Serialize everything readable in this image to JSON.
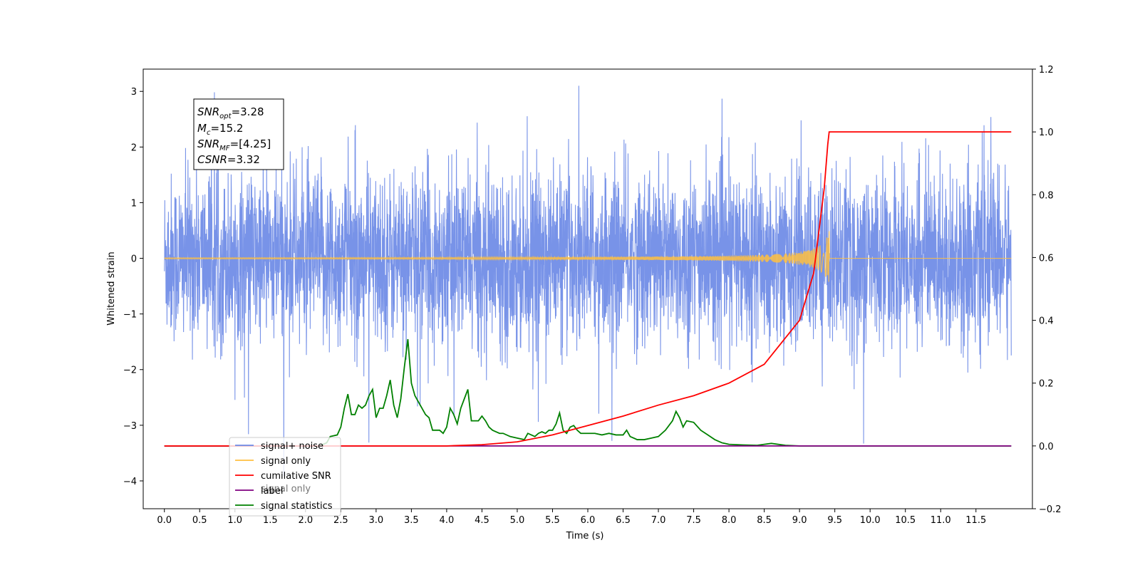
{
  "chart_data": {
    "type": "line",
    "xlabel": "Time (s)",
    "ylabel": "Whitened strain",
    "xlim": [
      -0.3,
      12.3
    ],
    "ylim": [
      -4.5,
      3.4
    ],
    "y2lim": [
      -0.2,
      1.2
    ],
    "grid": false,
    "legend_position": "bottom-left",
    "x_ticks": [
      "0.0",
      "0.5",
      "1.0",
      "1.5",
      "2.0",
      "2.5",
      "3.0",
      "3.5",
      "4.0",
      "4.5",
      "5.0",
      "5.5",
      "6.0",
      "6.5",
      "7.0",
      "7.5",
      "8.0",
      "8.5",
      "9.0",
      "9.5",
      "10.0",
      "10.5",
      "11.0",
      "11.5"
    ],
    "y_ticks": [
      "3",
      "2",
      "1",
      "0",
      "−1",
      "−2",
      "−3",
      "−4"
    ],
    "y2_ticks": [
      "1.2",
      "1.0",
      "0.8",
      "0.6",
      "0.4",
      "0.2",
      "0.0",
      "−0.2"
    ],
    "annotation": {
      "snr_opt_sym": "SNR",
      "snr_opt_sub": "opt",
      "snr_opt_val": "=3.28",
      "mc_sym": "M",
      "mc_sub": "c",
      "mc_val": "=15.2",
      "snr_mf_sym": "SNR",
      "snr_mf_sub": "MF",
      "snr_mf_val": "=[4.25]",
      "csnr_sym": "CSNR",
      "csnr_val": "=3.32"
    },
    "series": [
      {
        "name": "signal+ noise",
        "color": "#6d8ae6",
        "axis": "left",
        "description": "noise band, values roughly within [-1.5, 1.5] with spikes to about [-4.1, 3.1]",
        "t_range": [
          0.0,
          12.0
        ]
      },
      {
        "name": "signal only",
        "color": "#ffbf40",
        "axis": "left",
        "description": "chirp, near zero until ~8 s, amplitude rising to ~0.5 at 9.42 s then zero",
        "t_range": [
          0.0,
          12.0
        ]
      },
      {
        "name": "cumilative SNR",
        "color": "#ff0000",
        "axis": "right",
        "x": [
          0.0,
          4.0,
          4.5,
          5.0,
          5.5,
          6.0,
          6.5,
          7.0,
          7.5,
          8.0,
          8.5,
          9.0,
          9.2,
          9.35,
          9.4,
          9.42,
          9.45,
          12.0
        ],
        "y": [
          0.0,
          0.0,
          0.004,
          0.013,
          0.035,
          0.065,
          0.095,
          0.13,
          0.16,
          0.2,
          0.26,
          0.4,
          0.55,
          0.82,
          0.96,
          1.0,
          1.0,
          1.0
        ]
      },
      {
        "name": "label",
        "color": "#800080",
        "axis": "right",
        "x": [
          0.0,
          12.0
        ],
        "y": [
          0.0,
          0.0
        ]
      },
      {
        "name": "signal statistics",
        "color": "#008000",
        "axis": "right",
        "x": [
          0.0,
          2.2,
          2.3,
          2.35,
          2.45,
          2.5,
          2.55,
          2.6,
          2.65,
          2.7,
          2.75,
          2.8,
          2.85,
          2.9,
          2.95,
          3.0,
          3.05,
          3.1,
          3.15,
          3.2,
          3.25,
          3.3,
          3.35,
          3.4,
          3.45,
          3.5,
          3.55,
          3.6,
          3.65,
          3.7,
          3.75,
          3.8,
          3.85,
          3.9,
          3.95,
          4.0,
          4.05,
          4.1,
          4.15,
          4.2,
          4.25,
          4.3,
          4.35,
          4.4,
          4.45,
          4.5,
          4.55,
          4.6,
          4.65,
          4.7,
          4.75,
          4.8,
          4.9,
          5.0,
          5.1,
          5.15,
          5.2,
          5.25,
          5.3,
          5.35,
          5.4,
          5.45,
          5.5,
          5.55,
          5.6,
          5.65,
          5.7,
          5.75,
          5.8,
          5.85,
          5.9,
          6.0,
          6.1,
          6.2,
          6.3,
          6.4,
          6.5,
          6.55,
          6.6,
          6.7,
          6.8,
          6.9,
          7.0,
          7.1,
          7.2,
          7.25,
          7.3,
          7.35,
          7.4,
          7.5,
          7.6,
          7.7,
          7.8,
          7.9,
          8.0,
          8.2,
          8.4,
          8.5,
          8.6,
          8.8,
          9.0,
          9.3,
          12.0
        ],
        "y": [
          0.0,
          0.0,
          0.01,
          0.03,
          0.035,
          0.06,
          0.12,
          0.165,
          0.1,
          0.1,
          0.13,
          0.12,
          0.13,
          0.16,
          0.18,
          0.09,
          0.12,
          0.12,
          0.16,
          0.21,
          0.13,
          0.09,
          0.15,
          0.25,
          0.34,
          0.2,
          0.16,
          0.14,
          0.12,
          0.1,
          0.09,
          0.05,
          0.05,
          0.05,
          0.04,
          0.06,
          0.12,
          0.1,
          0.07,
          0.12,
          0.15,
          0.18,
          0.08,
          0.08,
          0.08,
          0.095,
          0.08,
          0.06,
          0.05,
          0.045,
          0.04,
          0.04,
          0.03,
          0.025,
          0.02,
          0.04,
          0.035,
          0.03,
          0.04,
          0.045,
          0.04,
          0.05,
          0.05,
          0.07,
          0.105,
          0.05,
          0.04,
          0.06,
          0.065,
          0.05,
          0.04,
          0.04,
          0.04,
          0.035,
          0.04,
          0.035,
          0.035,
          0.05,
          0.03,
          0.02,
          0.02,
          0.025,
          0.03,
          0.05,
          0.08,
          0.11,
          0.09,
          0.06,
          0.08,
          0.075,
          0.05,
          0.035,
          0.02,
          0.01,
          0.005,
          0.003,
          0.002,
          0.005,
          0.008,
          0.002,
          0.0,
          0.0,
          0.0
        ]
      }
    ],
    "legend": {
      "items": [
        {
          "label": "signal+ noise",
          "color": "#6d8ae6"
        },
        {
          "label": "signal only",
          "color": "#ffbf40"
        },
        {
          "label": "cumilative SNR",
          "color": "#ff0000"
        },
        {
          "label": "label",
          "color": "#800080"
        },
        {
          "label": "signal statistics",
          "color": "#008000"
        }
      ],
      "ghost_label": "signal only"
    }
  }
}
